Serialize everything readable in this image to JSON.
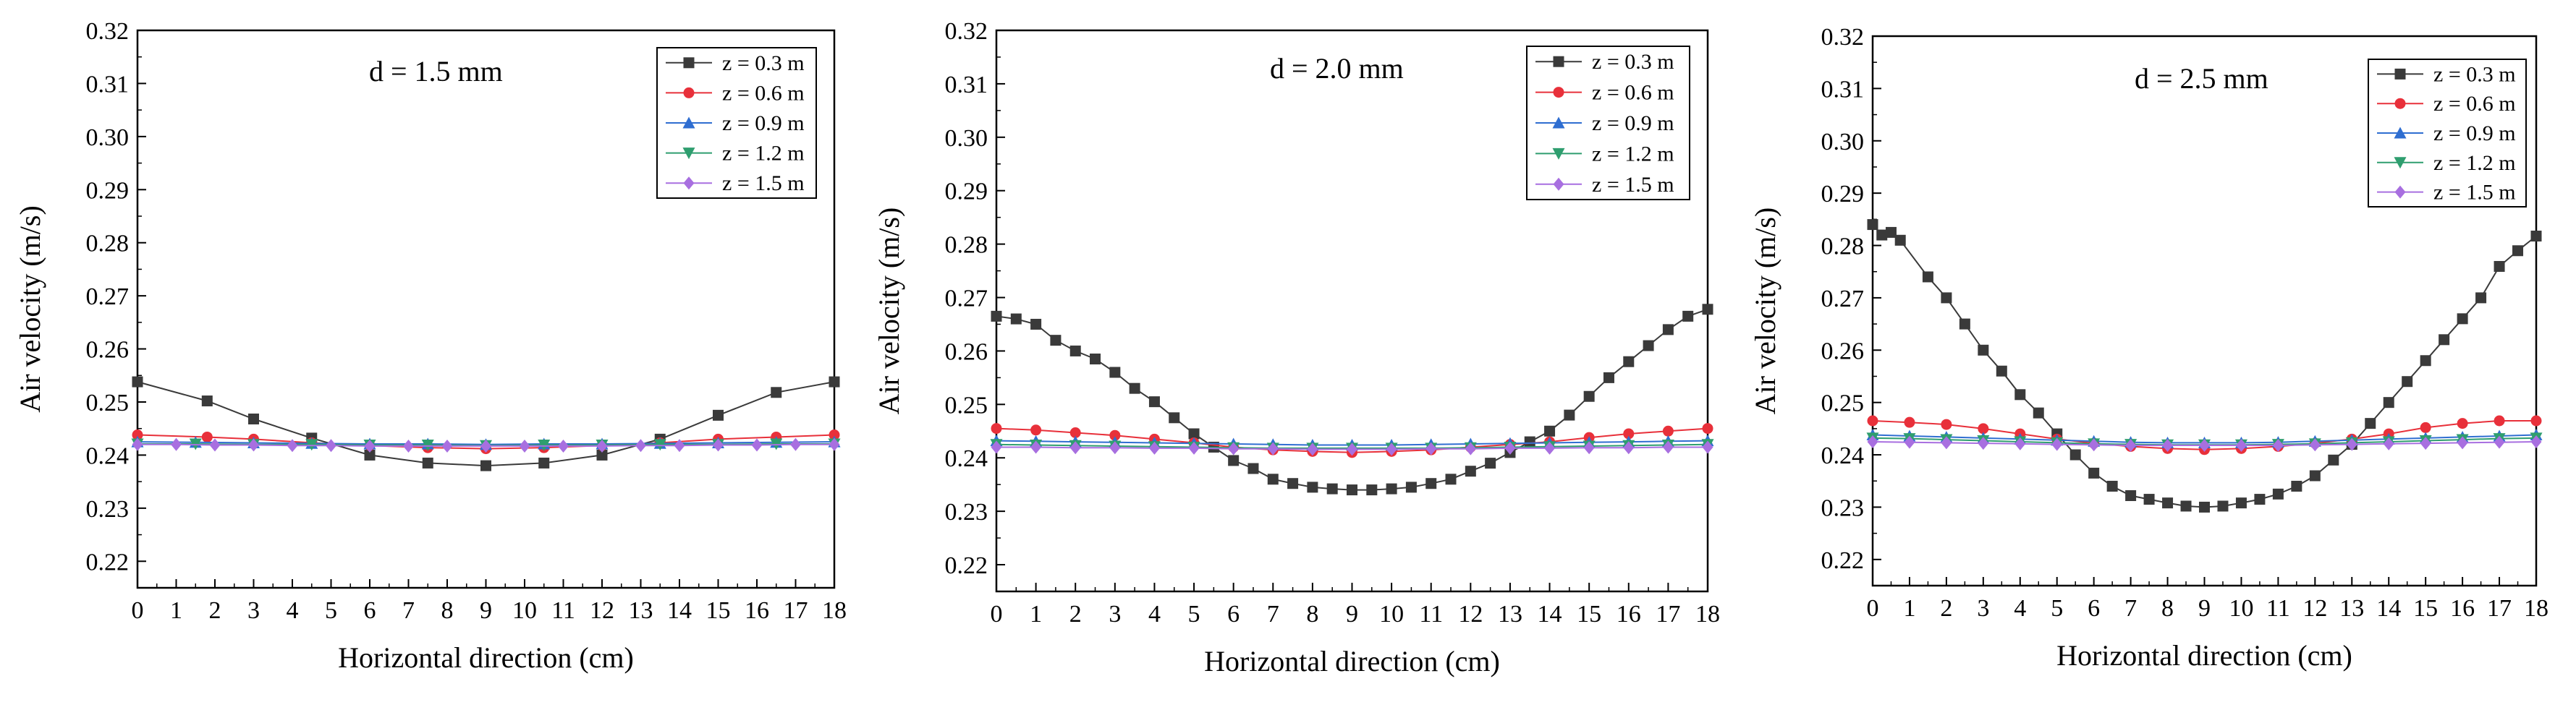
{
  "chart_data": [
    {
      "type": "line",
      "annotation": "d = 1.5 mm",
      "xlabel": "Horizontal direction (cm)",
      "ylabel": "Air velocity (m/s)",
      "xlim": [
        0,
        18
      ],
      "ylim": [
        0.215,
        0.32
      ],
      "xticks": [
        0,
        1,
        2,
        3,
        4,
        5,
        6,
        7,
        8,
        9,
        10,
        11,
        12,
        13,
        14,
        15,
        16,
        17,
        18
      ],
      "yticks": [
        0.22,
        0.23,
        0.24,
        0.25,
        0.26,
        0.27,
        0.28,
        0.29,
        0.3,
        0.31,
        0.32
      ],
      "ytick_labels": [
        "0.22",
        "0.23",
        "0.24",
        "0.25",
        "0.26",
        "0.27",
        "0.28",
        "0.29",
        "0.30",
        "0.31",
        "0.32"
      ],
      "legend_position": "top-right",
      "series": [
        {
          "name": "z = 0.3 m",
          "color": "#3a3a3a",
          "marker": "square",
          "x": [
            0,
            1.8,
            3,
            4.5,
            6,
            7.5,
            9,
            10.5,
            12,
            13.5,
            15,
            16.5,
            18
          ],
          "y": [
            0.2538,
            0.2502,
            0.2468,
            0.2432,
            0.24,
            0.2385,
            0.238,
            0.2385,
            0.24,
            0.243,
            0.2475,
            0.2518,
            0.2538
          ]
        },
        {
          "name": "z = 0.6 m",
          "color": "#e8303a",
          "marker": "circle",
          "x": [
            0,
            1.8,
            3,
            4.5,
            6,
            7.5,
            9,
            10.5,
            12,
            13.5,
            15,
            16.5,
            18
          ],
          "y": [
            0.2438,
            0.2434,
            0.243,
            0.2423,
            0.2418,
            0.2414,
            0.2412,
            0.2414,
            0.2418,
            0.2423,
            0.243,
            0.2434,
            0.2438
          ]
        },
        {
          "name": "z = 0.9 m",
          "color": "#2f6ed1",
          "marker": "triangle-up",
          "x": [
            0,
            1.5,
            3,
            4.5,
            6,
            7.5,
            9,
            10.5,
            12,
            13.5,
            15,
            16.5,
            18
          ],
          "y": [
            0.2425,
            0.2424,
            0.2423,
            0.2422,
            0.2421,
            0.2421,
            0.242,
            0.2421,
            0.2421,
            0.2422,
            0.2423,
            0.2424,
            0.2425
          ]
        },
        {
          "name": "z = 1.2 m",
          "color": "#2f9e6f",
          "marker": "triangle-down",
          "x": [
            0,
            1.5,
            3,
            4.5,
            6,
            7.5,
            9,
            10.5,
            12,
            13.5,
            15,
            16.5,
            18
          ],
          "y": [
            0.2421,
            0.2421,
            0.242,
            0.242,
            0.2419,
            0.2419,
            0.2418,
            0.2419,
            0.2419,
            0.242,
            0.242,
            0.2421,
            0.2421
          ]
        },
        {
          "name": "z = 1.5 m",
          "color": "#a86fe0",
          "marker": "diamond",
          "x": [
            0,
            1,
            2,
            3,
            4,
            5,
            6,
            7,
            8,
            9,
            10,
            11,
            12,
            13,
            14,
            15,
            16,
            17,
            18
          ],
          "y": [
            0.242,
            0.242,
            0.2419,
            0.2419,
            0.2418,
            0.2418,
            0.2417,
            0.2417,
            0.2417,
            0.2417,
            0.2417,
            0.2417,
            0.2417,
            0.2418,
            0.2418,
            0.2419,
            0.2419,
            0.242,
            0.242
          ]
        }
      ]
    },
    {
      "type": "line",
      "annotation": "d = 2.0 mm",
      "xlabel": "Horizontal direction (cm)",
      "ylabel": "Air velocity (m/s)",
      "xlim": [
        0,
        18
      ],
      "ylim": [
        0.215,
        0.32
      ],
      "xticks": [
        0,
        1,
        2,
        3,
        4,
        5,
        6,
        7,
        8,
        9,
        10,
        11,
        12,
        13,
        14,
        15,
        16,
        17,
        18
      ],
      "yticks": [
        0.22,
        0.23,
        0.24,
        0.25,
        0.26,
        0.27,
        0.28,
        0.29,
        0.3,
        0.31,
        0.32
      ],
      "ytick_labels": [
        "0.22",
        "0.23",
        "0.24",
        "0.25",
        "0.26",
        "0.27",
        "0.28",
        "0.29",
        "0.30",
        "0.31",
        "0.32"
      ],
      "legend_position": "top-right",
      "series": [
        {
          "name": "z = 0.3 m",
          "color": "#3a3a3a",
          "marker": "square",
          "x": [
            0,
            0.5,
            1,
            1.5,
            2,
            2.5,
            3,
            3.5,
            4,
            4.5,
            5,
            5.5,
            6,
            6.5,
            7,
            7.5,
            8,
            8.5,
            9,
            9.5,
            10,
            10.5,
            11,
            11.5,
            12,
            12.5,
            13,
            13.5,
            14,
            14.5,
            15,
            15.5,
            16,
            16.5,
            17,
            17.5,
            18
          ],
          "y": [
            0.2665,
            0.266,
            0.265,
            0.262,
            0.26,
            0.2585,
            0.256,
            0.253,
            0.2505,
            0.2475,
            0.2445,
            0.242,
            0.2395,
            0.238,
            0.236,
            0.2352,
            0.2345,
            0.2342,
            0.234,
            0.234,
            0.2342,
            0.2345,
            0.2352,
            0.236,
            0.2375,
            0.239,
            0.241,
            0.243,
            0.245,
            0.248,
            0.2515,
            0.255,
            0.258,
            0.261,
            0.264,
            0.2665,
            0.2678
          ]
        },
        {
          "name": "z = 0.6 m",
          "color": "#e8303a",
          "marker": "circle",
          "x": [
            0,
            1,
            2,
            3,
            4,
            5,
            6,
            7,
            8,
            9,
            10,
            11,
            12,
            13,
            14,
            15,
            16,
            17,
            18
          ],
          "y": [
            0.2455,
            0.2452,
            0.2447,
            0.2442,
            0.2435,
            0.2428,
            0.242,
            0.2415,
            0.2412,
            0.241,
            0.2412,
            0.2415,
            0.242,
            0.2425,
            0.243,
            0.2438,
            0.2445,
            0.245,
            0.2455
          ]
        },
        {
          "name": "z = 0.9 m",
          "color": "#2f6ed1",
          "marker": "triangle-up",
          "x": [
            0,
            1,
            2,
            3,
            4,
            5,
            6,
            7,
            8,
            9,
            10,
            11,
            12,
            13,
            14,
            15,
            16,
            17,
            18
          ],
          "y": [
            0.2432,
            0.2431,
            0.243,
            0.2429,
            0.2428,
            0.2427,
            0.2426,
            0.2425,
            0.2424,
            0.2424,
            0.2424,
            0.2425,
            0.2426,
            0.2427,
            0.2428,
            0.2429,
            0.243,
            0.2431,
            0.2432
          ]
        },
        {
          "name": "z = 1.2 m",
          "color": "#2f9e6f",
          "marker": "triangle-down",
          "x": [
            0,
            1,
            2,
            3,
            4,
            5,
            6,
            7,
            8,
            9,
            10,
            11,
            12,
            13,
            14,
            15,
            16,
            17,
            18
          ],
          "y": [
            0.2425,
            0.2424,
            0.2423,
            0.2422,
            0.2421,
            0.242,
            0.2419,
            0.2418,
            0.2418,
            0.2418,
            0.2418,
            0.2418,
            0.2419,
            0.242,
            0.2421,
            0.2422,
            0.2423,
            0.2424,
            0.2425
          ]
        },
        {
          "name": "z = 1.5 m",
          "color": "#a86fe0",
          "marker": "diamond",
          "x": [
            0,
            1,
            2,
            3,
            4,
            5,
            6,
            7,
            8,
            9,
            10,
            11,
            12,
            13,
            14,
            15,
            16,
            17,
            18
          ],
          "y": [
            0.242,
            0.242,
            0.2419,
            0.2419,
            0.2418,
            0.2418,
            0.2417,
            0.2417,
            0.2416,
            0.2416,
            0.2416,
            0.2417,
            0.2417,
            0.2418,
            0.2418,
            0.2419,
            0.2419,
            0.242,
            0.242
          ]
        }
      ]
    },
    {
      "type": "line",
      "annotation": "d = 2.5 mm",
      "xlabel": "Horizontal direction (cm)",
      "ylabel": "Air velocity (m/s)",
      "xlim": [
        0,
        18
      ],
      "ylim": [
        0.215,
        0.32
      ],
      "xticks": [
        0,
        1,
        2,
        3,
        4,
        5,
        6,
        7,
        8,
        9,
        10,
        11,
        12,
        13,
        14,
        15,
        16,
        17,
        18
      ],
      "yticks": [
        0.22,
        0.23,
        0.24,
        0.25,
        0.26,
        0.27,
        0.28,
        0.29,
        0.3,
        0.31,
        0.32
      ],
      "ytick_labels": [
        "0.22",
        "0.23",
        "0.24",
        "0.25",
        "0.26",
        "0.27",
        "0.28",
        "0.29",
        "0.30",
        "0.31",
        "0.32"
      ],
      "legend_position": "top-right",
      "series": [
        {
          "name": "z = 0.3 m",
          "color": "#3a3a3a",
          "marker": "square",
          "x": [
            0,
            0.25,
            0.5,
            0.75,
            1.5,
            2,
            2.5,
            3,
            3.5,
            4,
            4.5,
            5,
            5.5,
            6,
            6.5,
            7,
            7.5,
            8,
            8.5,
            9,
            9.5,
            10,
            10.5,
            11,
            11.5,
            12,
            12.5,
            13,
            13.5,
            14,
            14.5,
            15,
            15.5,
            16,
            16.5,
            17,
            17.5,
            18
          ],
          "y": [
            0.284,
            0.282,
            0.2825,
            0.281,
            0.274,
            0.27,
            0.265,
            0.26,
            0.256,
            0.2515,
            0.248,
            0.244,
            0.24,
            0.2365,
            0.234,
            0.2322,
            0.2315,
            0.2308,
            0.2302,
            0.23,
            0.2302,
            0.2308,
            0.2315,
            0.2325,
            0.234,
            0.236,
            0.239,
            0.242,
            0.246,
            0.25,
            0.254,
            0.258,
            0.262,
            0.266,
            0.27,
            0.276,
            0.279,
            0.2818
          ]
        },
        {
          "name": "z = 0.6 m",
          "color": "#e8303a",
          "marker": "circle",
          "x": [
            0,
            1,
            2,
            3,
            4,
            5,
            6,
            7,
            8,
            9,
            10,
            11,
            12,
            13,
            14,
            15,
            16,
            17,
            18
          ],
          "y": [
            0.2465,
            0.2462,
            0.2458,
            0.245,
            0.244,
            0.243,
            0.2422,
            0.2416,
            0.2412,
            0.241,
            0.2412,
            0.2416,
            0.2422,
            0.243,
            0.244,
            0.2452,
            0.246,
            0.2465,
            0.2465
          ]
        },
        {
          "name": "z = 0.9 m",
          "color": "#2f6ed1",
          "marker": "triangle-up",
          "x": [
            0,
            1,
            2,
            3,
            4,
            5,
            6,
            7,
            8,
            9,
            10,
            11,
            12,
            13,
            14,
            15,
            16,
            17,
            18
          ],
          "y": [
            0.2438,
            0.2436,
            0.2434,
            0.2432,
            0.243,
            0.2428,
            0.2426,
            0.2424,
            0.2423,
            0.2423,
            0.2423,
            0.2424,
            0.2426,
            0.2428,
            0.243,
            0.2432,
            0.2434,
            0.2436,
            0.2438
          ]
        },
        {
          "name": "z = 1.2 m",
          "color": "#2f9e6f",
          "marker": "triangle-down",
          "x": [
            0,
            1,
            2,
            3,
            4,
            5,
            6,
            7,
            8,
            9,
            10,
            11,
            12,
            13,
            14,
            15,
            16,
            17,
            18
          ],
          "y": [
            0.2432,
            0.2431,
            0.2429,
            0.2427,
            0.2425,
            0.2423,
            0.2421,
            0.242,
            0.2419,
            0.2419,
            0.2419,
            0.242,
            0.2421,
            0.2423,
            0.2425,
            0.2427,
            0.2429,
            0.2431,
            0.2432
          ]
        },
        {
          "name": "z = 1.5 m",
          "color": "#a86fe0",
          "marker": "diamond",
          "x": [
            0,
            1,
            2,
            3,
            4,
            5,
            6,
            7,
            8,
            9,
            10,
            11,
            12,
            13,
            14,
            15,
            16,
            17,
            18
          ],
          "y": [
            0.2425,
            0.2424,
            0.2423,
            0.2422,
            0.2421,
            0.242,
            0.2419,
            0.2418,
            0.2418,
            0.2418,
            0.2418,
            0.2418,
            0.2419,
            0.242,
            0.2421,
            0.2422,
            0.2423,
            0.2424,
            0.2425
          ]
        }
      ]
    }
  ]
}
